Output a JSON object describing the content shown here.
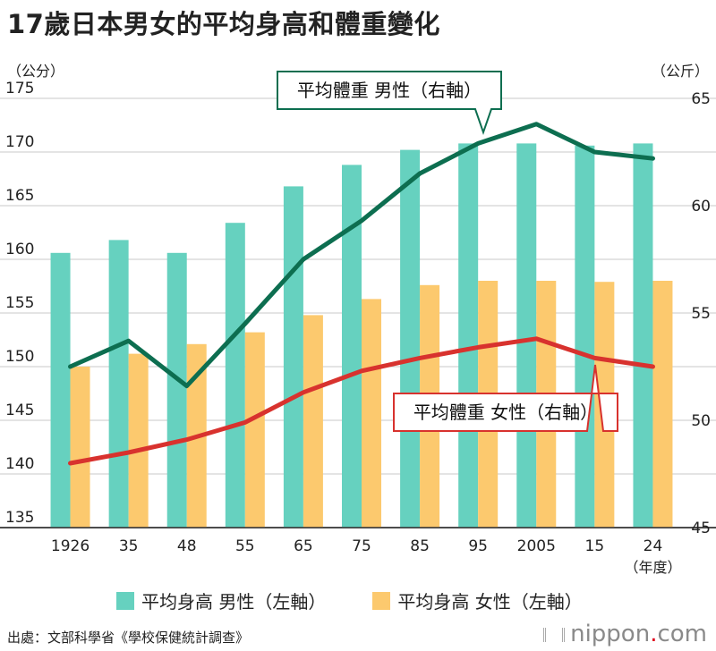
{
  "title": "17歲日本男女的平均身高和體重變化",
  "units": {
    "left": "（公分）",
    "right": "（公斤）"
  },
  "chart_data": {
    "type": "bar+line",
    "categories": [
      "1926",
      "35",
      "48",
      "55",
      "65",
      "75",
      "85",
      "95",
      "2005",
      "15",
      "24"
    ],
    "x_unit": "（年度）",
    "y_left": {
      "min": 135,
      "max": 175,
      "ticks": [
        175,
        170,
        165,
        160,
        155,
        150,
        145,
        140,
        135
      ]
    },
    "y_right": {
      "min": 45,
      "max": 65,
      "ticks": [
        65,
        60,
        55,
        50,
        45
      ]
    },
    "grid": true,
    "bars": [
      {
        "name": "平均身高 男性（左軸）",
        "color": "#66d1bf",
        "values": [
          160.6,
          161.8,
          160.6,
          163.4,
          166.8,
          168.8,
          170.2,
          170.8,
          170.8,
          170.6,
          170.8
        ]
      },
      {
        "name": "平均身高 女性（左軸）",
        "color": "#fcc96e",
        "values": [
          150.0,
          151.2,
          152.1,
          153.2,
          154.8,
          156.3,
          157.6,
          158.0,
          158.0,
          157.9,
          158.0
        ]
      }
    ],
    "lines": [
      {
        "name": "平均體重 男性（右軸）",
        "axis": "right",
        "color": "#0d6e50",
        "values": [
          52.5,
          53.7,
          51.6,
          54.5,
          57.5,
          59.3,
          61.5,
          62.9,
          63.8,
          62.5,
          62.2
        ]
      },
      {
        "name": "平均體重 女性（右軸）",
        "axis": "right",
        "color": "#d8322e",
        "values": [
          48.0,
          48.5,
          49.1,
          49.9,
          51.3,
          52.3,
          52.9,
          53.4,
          53.8,
          52.9,
          52.5
        ]
      }
    ],
    "annotations": {
      "male_weight": "平均體重 男性（右軸）",
      "female_weight": "平均體重 女性（右軸）"
    },
    "legend": [
      {
        "label": "平均身高 男性（左軸）",
        "color": "#66d1bf"
      },
      {
        "label": "平均身高 女性（左軸）",
        "color": "#fcc96e"
      }
    ]
  },
  "source": "出處：文部科學省《學校保健統計調查》",
  "brand": {
    "name": "nippon",
    "dot": ".",
    "tld": "com"
  }
}
